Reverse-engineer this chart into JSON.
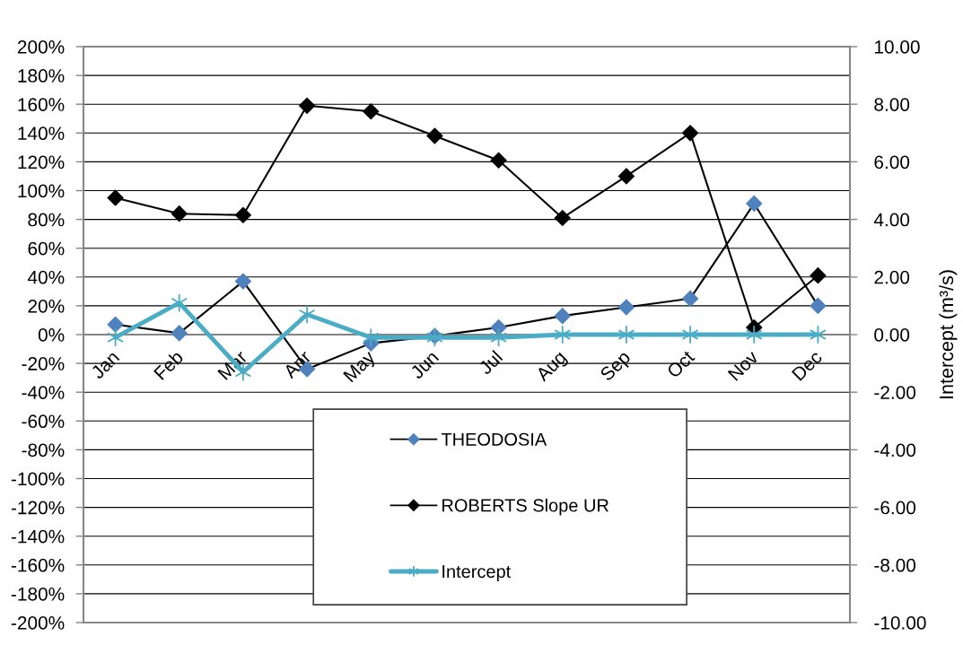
{
  "chart_data": {
    "type": "line",
    "categories": [
      "Jan",
      "Feb",
      "Mar",
      "Apr",
      "May",
      "Jun",
      "Jul",
      "Aug",
      "Sep",
      "Oct",
      "Nov",
      "Dec"
    ],
    "ylim": [
      -200,
      200
    ],
    "yticks": [
      {
        "value": -200,
        "label": "-200%"
      },
      {
        "value": -180,
        "label": "-180%"
      },
      {
        "value": -160,
        "label": "-160%"
      },
      {
        "value": -140,
        "label": "-140%"
      },
      {
        "value": -120,
        "label": "-120%"
      },
      {
        "value": -100,
        "label": "-100%"
      },
      {
        "value": -80,
        "label": "-80%"
      },
      {
        "value": -60,
        "label": "-60%"
      },
      {
        "value": -40,
        "label": "-40%"
      },
      {
        "value": -20,
        "label": "-20%"
      },
      {
        "value": 0,
        "label": "0%"
      },
      {
        "value": 20,
        "label": "20%"
      },
      {
        "value": 40,
        "label": "40%"
      },
      {
        "value": 60,
        "label": "60%"
      },
      {
        "value": 80,
        "label": "80%"
      },
      {
        "value": 100,
        "label": "100%"
      },
      {
        "value": 120,
        "label": "120%"
      },
      {
        "value": 140,
        "label": "140%"
      },
      {
        "value": 160,
        "label": "160%"
      },
      {
        "value": 180,
        "label": "180%"
      },
      {
        "value": 200,
        "label": "200%"
      }
    ],
    "y2lim": [
      -10,
      10
    ],
    "y2ticks": [
      {
        "value": -10,
        "label": "-10.00"
      },
      {
        "value": -8,
        "label": "-8.00"
      },
      {
        "value": -6,
        "label": "-6.00"
      },
      {
        "value": -4,
        "label": "-4.00"
      },
      {
        "value": -2,
        "label": "-2.00"
      },
      {
        "value": 0,
        "label": "0.00"
      },
      {
        "value": 2,
        "label": "2.00"
      },
      {
        "value": 4,
        "label": "4.00"
      },
      {
        "value": 6,
        "label": "6.00"
      },
      {
        "value": 8,
        "label": "8.00"
      },
      {
        "value": 10,
        "label": "10.00"
      }
    ],
    "y2label": "Intercept (m³/s)",
    "grid": "y",
    "legend": "bottom",
    "series": [
      {
        "name": "THEODOSIA",
        "color": "#000000",
        "colors": [
          "#4f81bd",
          "#4f81bd",
          "#4f81bd",
          "#4f81bd",
          "#4f81bd",
          "#4f81bd",
          "#4f81bd",
          "#4f81bd",
          "#4f81bd",
          "#4f81bd",
          "#4f81bd",
          "#4f81bd"
        ],
        "marker": "diamond",
        "values": [
          7,
          1,
          37,
          -24,
          -6,
          -1,
          5,
          13,
          19,
          25,
          91,
          20
        ]
      },
      {
        "name": "ROBERTS Slope UR",
        "color": "#000000",
        "marker": "diamond",
        "values": [
          95,
          84,
          83,
          159,
          155,
          138,
          121,
          81,
          110,
          140,
          5,
          41
        ]
      },
      {
        "name": "Intercept",
        "color": "#4bacc6",
        "marker": "cross",
        "axis": "y2",
        "values": [
          -0.1,
          1.1,
          -1.3,
          0.7,
          -0.1,
          -0.1,
          -0.1,
          0,
          0,
          0,
          0,
          0
        ]
      }
    ]
  }
}
